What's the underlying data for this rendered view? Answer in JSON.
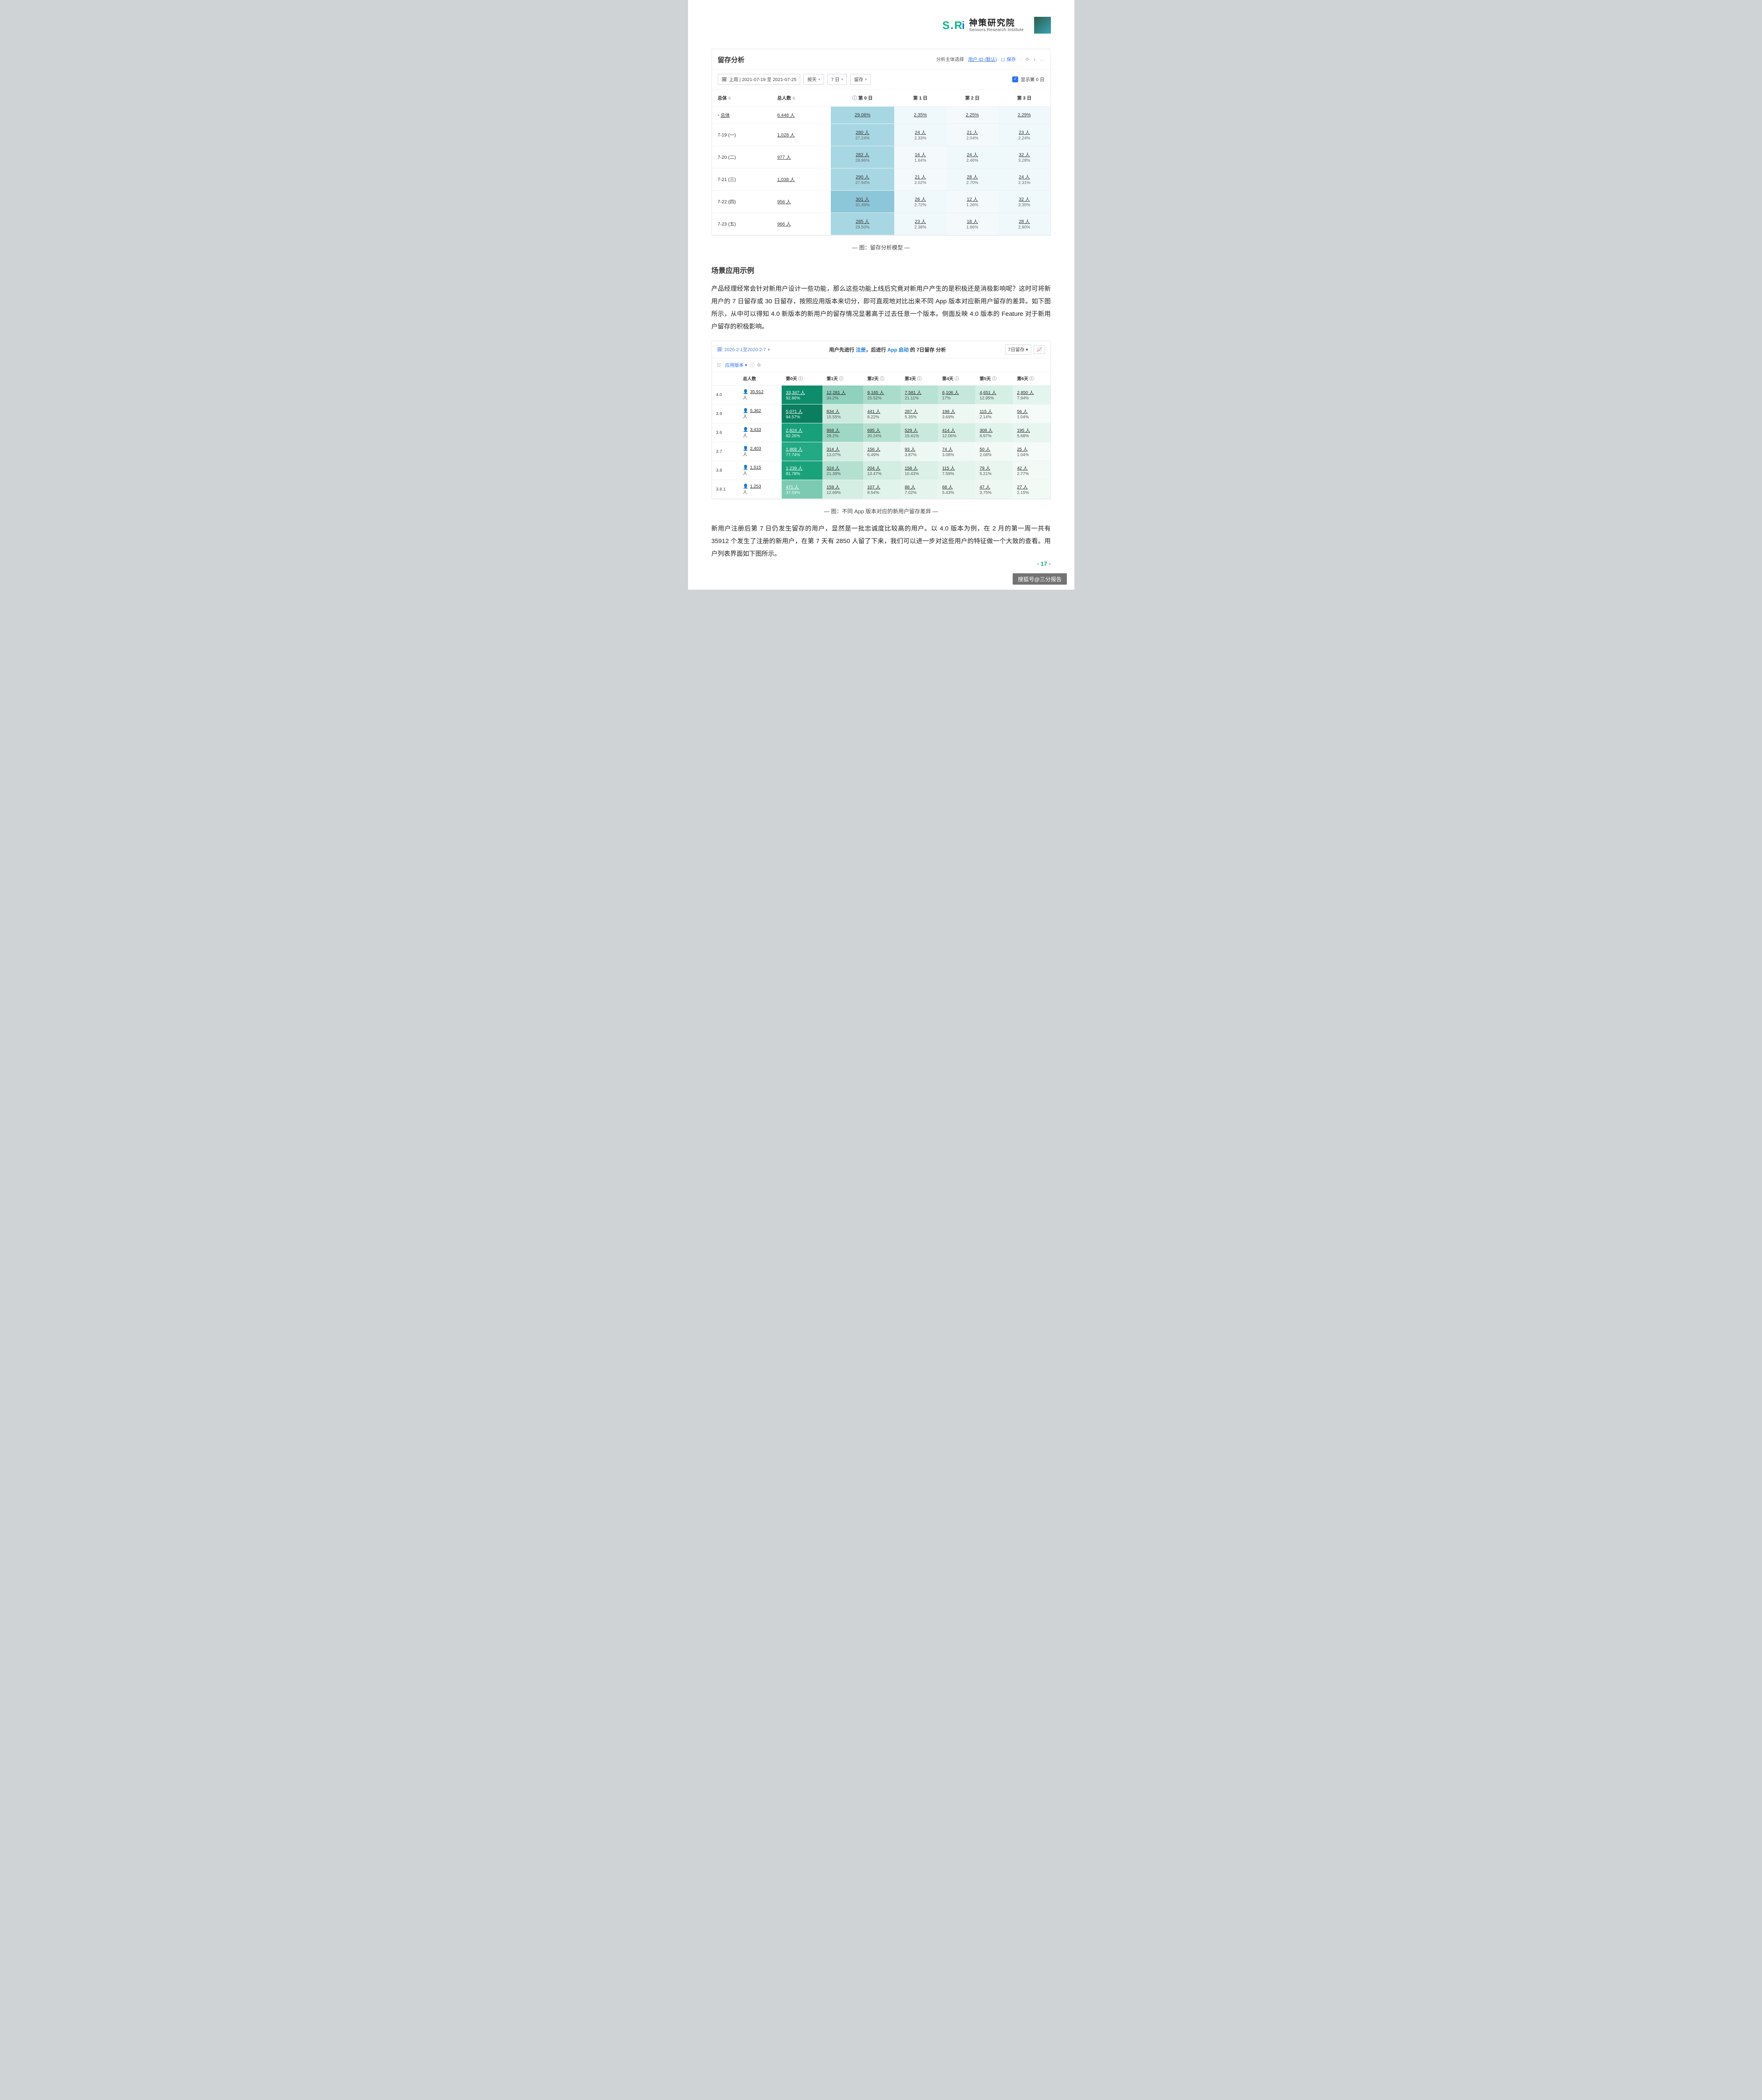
{
  "brand": {
    "cn": "神策研究院",
    "en": "Sensors Research Institute"
  },
  "panel1": {
    "title": "留存分析",
    "toolbar": {
      "subj_label": "分析主体选择",
      "subj_sel": "用户 ID (默认)",
      "save": "保存",
      "refresh": "⟳",
      "dl": "⤓",
      "more": "…"
    },
    "filters": {
      "date": "上周 | 2021-07-19 至 2021-07-25",
      "gran": "按天",
      "days": "7 日",
      "metric": "留存",
      "day0_label": "显示第 0 日"
    },
    "headers": [
      "总体",
      "总人数",
      "第 0 日",
      "第 1 日",
      "第 2 日",
      "第 3 日"
    ],
    "total": {
      "label": "总体",
      "count": "6,448 人",
      "d0": {
        "v": "29.06%"
      },
      "d1": {
        "v": "2.35%"
      },
      "d2": {
        "v": "2.25%"
      },
      "d3": {
        "v": "2.29%"
      }
    },
    "rows": [
      {
        "label": "7-19 (一)",
        "count": "1,028 人",
        "d0": {
          "v": "280 人",
          "r": "27.24%",
          "bg": "#a7d7e3"
        },
        "d1": {
          "v": "24 人",
          "r": "2.33%",
          "bg": "#eff8fb"
        },
        "d2": {
          "v": "21 人",
          "r": "2.04%",
          "bg": "#f4fafc"
        },
        "d3": {
          "v": "23 人",
          "r": "2.24%",
          "bg": "#eff8fb"
        }
      },
      {
        "label": "7-20 (二)",
        "count": "977 人",
        "d0": {
          "v": "282 人",
          "r": "28.86%",
          "bg": "#a7d7e3"
        },
        "d1": {
          "v": "16 人",
          "r": "1.64%",
          "bg": "#f4fafc"
        },
        "d2": {
          "v": "24 人",
          "r": "2.46%",
          "bg": "#eff8fb"
        },
        "d3": {
          "v": "32 人",
          "r": "3.28%",
          "bg": "#eff8fb"
        }
      },
      {
        "label": "7-21 (三)",
        "count": "1,038 人",
        "d0": {
          "v": "290 人",
          "r": "27.94%",
          "bg": "#a7d7e3"
        },
        "d1": {
          "v": "21 人",
          "r": "2.02%",
          "bg": "#f4fafc"
        },
        "d2": {
          "v": "28 人",
          "r": "2.70%",
          "bg": "#eff8fb"
        },
        "d3": {
          "v": "24 人",
          "r": "2.31%",
          "bg": "#eff8fb"
        }
      },
      {
        "label": "7-22 (四)",
        "count": "956 人",
        "d0": {
          "v": "301 人",
          "r": "31.49%",
          "bg": "#8cc7d9"
        },
        "d1": {
          "v": "26 人",
          "r": "2.72%",
          "bg": "#eff8fb"
        },
        "d2": {
          "v": "12 人",
          "r": "1.26%",
          "bg": "#f4fafc"
        },
        "d3": {
          "v": "32 人",
          "r": "3.35%",
          "bg": "#eff8fb"
        }
      },
      {
        "label": "7-23 (五)",
        "count": "966 人",
        "d0": {
          "v": "285 人",
          "r": "29.50%",
          "bg": "#a7d7e3"
        },
        "d1": {
          "v": "23 人",
          "r": "2.38%",
          "bg": "#eff8fb"
        },
        "d2": {
          "v": "18 人",
          "r": "1.86%",
          "bg": "#f4fafc"
        },
        "d3": {
          "v": "28 人",
          "r": "2.90%",
          "bg": "#eff8fb"
        }
      }
    ],
    "caption": "—  图：留存分析模型  —"
  },
  "body": {
    "h2": "场景应用示例",
    "p1": "产品经理经常会针对新用户设计一些功能，那么这些功能上线后究竟对新用户产生的是积极还是消极影响呢？这时可将新用户的 7 日留存或 30 日留存，按照应用版本来切分，即可直观地对比出来不同 App 版本对应新用户留存的差异。如下图所示，从中可以得知 4.0 新版本的新用户的留存情况显著高于过去任意一个版本。侧面反映 4.0 版本的 Feature 对于新用户留存的积极影响。",
    "p2": "新用户注册后第 7 日仍发生留存的用户，显然是一批忠诚度比较高的用户。以 4.0 版本为例，在 2 月的第一周一共有 35912 个发生了注册的新用户，在第 7 天有 2850 人留了下来，我们可以进一步对这些用户的特征做一个大致的查看。用户列表界面如下图所示。"
  },
  "panel2": {
    "date": "2020-2-1至2020-2-7",
    "title_pre": "用户先进行 ",
    "kw1": "注册",
    "title_mid": "，后进行 ",
    "kw2": "App 启动",
    "title_post": " 的 7日留存 分析",
    "sel": "7日留存",
    "ver_filter": "应用版本",
    "headers": [
      "总人数",
      "第0天",
      "第1天",
      "第2天",
      "第3天",
      "第4天",
      "第5天",
      "第6天"
    ],
    "rows": [
      {
        "ver": "4.0",
        "count": "35,912",
        "cells": [
          {
            "v": "33,347 人",
            "r": "92.86%",
            "bg": "#0d8d6b"
          },
          {
            "v": "12,281 人",
            "r": "34.2%",
            "bg": "#8fd1bd"
          },
          {
            "v": "9,165 人",
            "r": "25.52%",
            "bg": "#a9dccb"
          },
          {
            "v": "7,581 人",
            "r": "21.11%",
            "bg": "#b8e2d3"
          },
          {
            "v": "6,106 人",
            "r": "17%",
            "bg": "#c6e8dc"
          },
          {
            "v": "4,651 人",
            "r": "12.95%",
            "bg": "#d5efe5"
          },
          {
            "v": "2,850 人",
            "r": "7.94%",
            "bg": "#e4f5ee"
          }
        ]
      },
      {
        "ver": "3.9",
        "count": "5,362",
        "cells": [
          {
            "v": "5,071 人",
            "r": "94.57%",
            "bg": "#0b7e5f"
          },
          {
            "v": "834 人",
            "r": "15.55%",
            "bg": "#cdeadf"
          },
          {
            "v": "441 人",
            "r": "8.22%",
            "bg": "#e2f3eb"
          },
          {
            "v": "287 人",
            "r": "5.35%",
            "bg": "#e9f6f0"
          },
          {
            "v": "198 人",
            "r": "3.69%",
            "bg": "#eef8f3"
          },
          {
            "v": "115 人",
            "r": "2.14%",
            "bg": "#f2faf6"
          },
          {
            "v": "56 人",
            "r": "1.04%",
            "bg": "#f5fbf8"
          }
        ]
      },
      {
        "ver": "3.6",
        "count": "3,433",
        "cells": [
          {
            "v": "2,824 人",
            "r": "82.26%",
            "bg": "#17a079"
          },
          {
            "v": "968 人",
            "r": "28.2%",
            "bg": "#9ed7c4"
          },
          {
            "v": "695 人",
            "r": "20.24%",
            "bg": "#b6e1d1"
          },
          {
            "v": "529 人",
            "r": "15.41%",
            "bg": "#c9e9dd"
          },
          {
            "v": "414 人",
            "r": "12.06%",
            "bg": "#d6efe5"
          },
          {
            "v": "308 人",
            "r": "8.97%",
            "bg": "#e1f4ec"
          },
          {
            "v": "195 人",
            "r": "5.68%",
            "bg": "#e8f6f0"
          }
        ]
      },
      {
        "ver": "3.7",
        "count": "2,403",
        "cells": [
          {
            "v": "1,868 人",
            "r": "77.74%",
            "bg": "#23a983"
          },
          {
            "v": "314 人",
            "r": "13.07%",
            "bg": "#d4eee4"
          },
          {
            "v": "156 人",
            "r": "6.49%",
            "bg": "#e6f5ef"
          },
          {
            "v": "93 人",
            "r": "3.87%",
            "bg": "#edf8f3"
          },
          {
            "v": "74 人",
            "r": "3.08%",
            "bg": "#f0f9f5"
          },
          {
            "v": "50 人",
            "r": "2.08%",
            "bg": "#f3faf6"
          },
          {
            "v": "25 人",
            "r": "1.04%",
            "bg": "#f5fbf8"
          }
        ]
      },
      {
        "ver": "3.8",
        "count": "1,515",
        "cells": [
          {
            "v": "1,239 人",
            "r": "81.78%",
            "bg": "#1aa37b"
          },
          {
            "v": "324 人",
            "r": "21.39%",
            "bg": "#b4e0d0"
          },
          {
            "v": "204 人",
            "r": "13.47%",
            "bg": "#d2ede2"
          },
          {
            "v": "158 人",
            "r": "10.43%",
            "bg": "#dbf1e8"
          },
          {
            "v": "115 人",
            "r": "7.59%",
            "bg": "#e3f4ed"
          },
          {
            "v": "79 人",
            "r": "5.21%",
            "bg": "#e9f6f0"
          },
          {
            "v": "42 人",
            "r": "2.77%",
            "bg": "#f1faf5"
          }
        ]
      },
      {
        "ver": "3.8.1",
        "count": "1,253",
        "cells": [
          {
            "v": "471 人",
            "r": "37.59%",
            "bg": "#7ccab2"
          },
          {
            "v": "159 人",
            "r": "12.69%",
            "bg": "#d4eee4"
          },
          {
            "v": "107 人",
            "r": "8.54%",
            "bg": "#e1f4ec"
          },
          {
            "v": "88 人",
            "r": "7.02%",
            "bg": "#e5f5ee"
          },
          {
            "v": "68 人",
            "r": "5.43%",
            "bg": "#e9f6f0"
          },
          {
            "v": "47 人",
            "r": "3.75%",
            "bg": "#eef8f3"
          },
          {
            "v": "27 人",
            "r": "2.15%",
            "bg": "#f2faf6"
          }
        ]
      }
    ],
    "caption": "—  图：不同 App 版本对应的新用户留存差异  —"
  },
  "pgno": "- 17 -",
  "footer": "搜狐号@三分报告"
}
